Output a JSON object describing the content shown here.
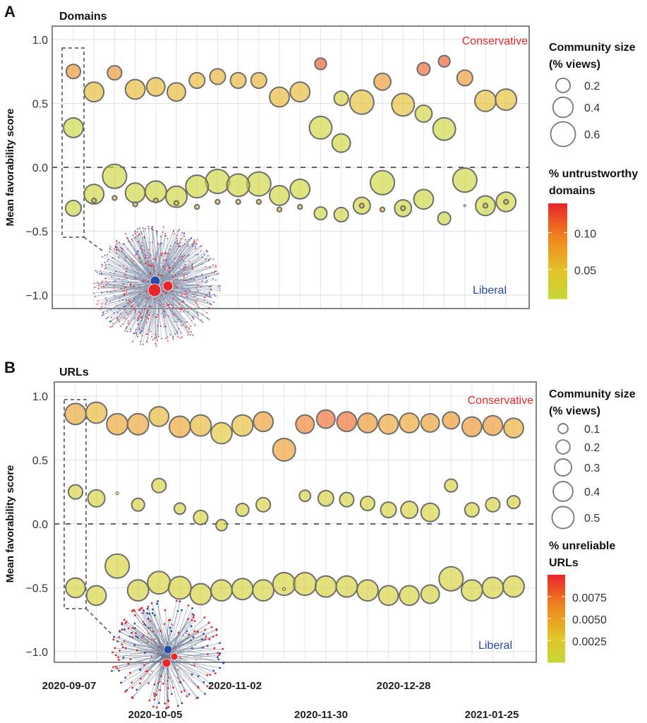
{
  "colors": {
    "conservative": "#e8262a",
    "liberal": "#2a4aa8",
    "bubble_stroke": "#6e6e6e"
  },
  "chart_data": [
    {
      "type": "scatter",
      "panel": "A",
      "title": "Domains",
      "ylabel": "Mean favorability score",
      "xlabel": "",
      "ylim": [
        -1.1,
        1.1
      ],
      "yticks": [
        "1.0",
        "0.5",
        "0.0",
        "−0.5",
        "−1.0"
      ],
      "ytick_values": [
        1.0,
        0.5,
        0.0,
        -0.5,
        -1.0
      ],
      "grid": true,
      "zero_line": "dashed",
      "annotations": {
        "top": "Conservative",
        "bottom": "Liberal"
      },
      "size_legend": {
        "title": [
          "Community size",
          "(% views)"
        ],
        "values": [
          0.2,
          0.4,
          0.6
        ],
        "labels": [
          "0.2",
          "0.4",
          "0.6"
        ]
      },
      "color_legend": {
        "title": [
          "% untrustworthy",
          "domains"
        ],
        "range": [
          0.01,
          0.14
        ],
        "ticks": [
          "0.10",
          "0.05"
        ],
        "tick_values": [
          0.1,
          0.05
        ]
      },
      "highlight_week": "2020-09-07",
      "point_fields": [
        "week_index",
        "score",
        "community_size_pct_views",
        "pct_untrustworthy"
      ],
      "points": [
        [
          0,
          0.75,
          0.2,
          0.09
        ],
        [
          0,
          0.31,
          0.38,
          0.02
        ],
        [
          0,
          -0.32,
          0.24,
          0.02
        ],
        [
          1,
          0.59,
          0.38,
          0.06
        ],
        [
          1,
          -0.21,
          0.38,
          0.02
        ],
        [
          1,
          -0.26,
          0.02,
          0.06
        ],
        [
          2,
          0.74,
          0.2,
          0.09
        ],
        [
          2,
          -0.07,
          0.57,
          0.02
        ],
        [
          2,
          -0.24,
          0.02,
          0.06
        ],
        [
          3,
          0.61,
          0.38,
          0.06
        ],
        [
          3,
          -0.2,
          0.38,
          0.02
        ],
        [
          3,
          -0.29,
          0.02,
          0.06
        ],
        [
          4,
          0.63,
          0.33,
          0.06
        ],
        [
          4,
          -0.19,
          0.44,
          0.02
        ],
        [
          4,
          -0.26,
          0.02,
          0.06
        ],
        [
          5,
          0.59,
          0.33,
          0.06
        ],
        [
          5,
          -0.23,
          0.44,
          0.02
        ],
        [
          5,
          -0.28,
          0.02,
          0.06
        ],
        [
          6,
          0.68,
          0.24,
          0.06
        ],
        [
          6,
          -0.15,
          0.5,
          0.02
        ],
        [
          6,
          -0.31,
          0.02,
          0.06
        ],
        [
          7,
          0.71,
          0.24,
          0.065
        ],
        [
          7,
          -0.11,
          0.57,
          0.02
        ],
        [
          7,
          -0.27,
          0.02,
          0.06
        ],
        [
          8,
          0.68,
          0.24,
          0.065
        ],
        [
          8,
          -0.14,
          0.5,
          0.02
        ],
        [
          8,
          -0.27,
          0.02,
          0.06
        ],
        [
          9,
          0.68,
          0.24,
          0.065
        ],
        [
          9,
          -0.13,
          0.57,
          0.02
        ],
        [
          9,
          -0.27,
          0.02,
          0.06
        ],
        [
          10,
          0.55,
          0.38,
          0.06
        ],
        [
          10,
          -0.22,
          0.38,
          0.02
        ],
        [
          10,
          -0.33,
          0.02,
          0.06
        ],
        [
          11,
          0.59,
          0.38,
          0.06
        ],
        [
          11,
          -0.17,
          0.38,
          0.02
        ],
        [
          11,
          -0.31,
          0.02,
          0.06
        ],
        [
          12,
          0.81,
          0.13,
          0.12
        ],
        [
          12,
          0.31,
          0.5,
          0.02
        ],
        [
          12,
          -0.36,
          0.16,
          0.02
        ],
        [
          13,
          0.54,
          0.2,
          0.03
        ],
        [
          13,
          0.19,
          0.33,
          0.02
        ],
        [
          13,
          -0.37,
          0.2,
          0.02
        ],
        [
          14,
          0.51,
          0.57,
          0.055
        ],
        [
          14,
          -0.3,
          0.28,
          0.02
        ],
        [
          14,
          -0.3,
          0.02,
          0.06
        ],
        [
          15,
          0.67,
          0.28,
          0.085
        ],
        [
          15,
          -0.12,
          0.57,
          0.02
        ],
        [
          15,
          -0.33,
          0.02,
          0.06
        ],
        [
          16,
          0.49,
          0.5,
          0.055
        ],
        [
          16,
          -0.32,
          0.28,
          0.02
        ],
        [
          16,
          -0.32,
          0.02,
          0.06
        ],
        [
          17,
          0.77,
          0.16,
          0.115
        ],
        [
          17,
          0.42,
          0.28,
          0.025
        ],
        [
          17,
          -0.25,
          0.38,
          0.02
        ],
        [
          18,
          0.83,
          0.13,
          0.12
        ],
        [
          18,
          0.3,
          0.5,
          0.02
        ],
        [
          18,
          -0.4,
          0.16,
          0.02
        ],
        [
          19,
          0.7,
          0.24,
          0.085
        ],
        [
          19,
          -0.1,
          0.57,
          0.02
        ],
        [
          19,
          -0.3,
          0.005,
          0.02
        ],
        [
          20,
          0.52,
          0.44,
          0.055
        ],
        [
          20,
          -0.3,
          0.38,
          0.02
        ],
        [
          20,
          -0.3,
          0.02,
          0.06
        ],
        [
          21,
          0.53,
          0.44,
          0.055
        ],
        [
          21,
          -0.27,
          0.38,
          0.02
        ],
        [
          21,
          -0.27,
          0.02,
          0.06
        ]
      ]
    },
    {
      "type": "scatter",
      "panel": "B",
      "title": "URLs",
      "ylabel": "Mean favorability score",
      "xlabel": "",
      "ylim": [
        -1.1,
        1.1
      ],
      "yticks": [
        "1.0",
        "0.5",
        "0.0",
        "−0.5",
        "−1.0"
      ],
      "ytick_values": [
        1.0,
        0.5,
        0.0,
        -0.5,
        -1.0
      ],
      "grid": true,
      "zero_line": "dashed",
      "annotations": {
        "top": "Conservative",
        "bottom": "Liberal"
      },
      "size_legend": {
        "title": [
          "Community size",
          "(% views)"
        ],
        "values": [
          0.1,
          0.2,
          0.3,
          0.4,
          0.5
        ],
        "labels": [
          "0.1",
          "0.2",
          "0.3",
          "0.4",
          "0.5"
        ]
      },
      "color_legend": {
        "title": [
          "% unreliable",
          "URLs"
        ],
        "range": [
          0,
          0.01
        ],
        "ticks": [
          "0.0075",
          "0.0050",
          "0.0025"
        ],
        "tick_values": [
          0.0075,
          0.005,
          0.0025
        ]
      },
      "highlight_week": "2020-09-07",
      "point_fields": [
        "week_index",
        "score",
        "community_size_pct_views",
        "pct_unreliable"
      ],
      "points": [
        [
          0,
          0.86,
          0.46,
          0.005
        ],
        [
          0,
          0.25,
          0.21,
          0.0015
        ],
        [
          0,
          -0.5,
          0.4,
          0.0015
        ],
        [
          1,
          0.87,
          0.46,
          0.004
        ],
        [
          1,
          0.2,
          0.3,
          0.0015
        ],
        [
          1,
          -0.56,
          0.4,
          0.0015
        ],
        [
          2,
          0.78,
          0.46,
          0.005
        ],
        [
          2,
          0.24,
          0.01,
          0.0015
        ],
        [
          2,
          -0.33,
          0.6,
          0.0015
        ],
        [
          3,
          0.78,
          0.46,
          0.005
        ],
        [
          3,
          0.15,
          0.17,
          0.0015
        ],
        [
          3,
          -0.52,
          0.46,
          0.0015
        ],
        [
          4,
          0.84,
          0.4,
          0.004
        ],
        [
          4,
          0.3,
          0.21,
          0.0015
        ],
        [
          4,
          -0.46,
          0.53,
          0.0015
        ],
        [
          5,
          0.76,
          0.46,
          0.005
        ],
        [
          5,
          0.12,
          0.13,
          0.0015
        ],
        [
          5,
          -0.5,
          0.53,
          0.0015
        ],
        [
          6,
          0.77,
          0.46,
          0.004
        ],
        [
          6,
          0.05,
          0.21,
          0.0015
        ],
        [
          6,
          -0.55,
          0.46,
          0.0015
        ],
        [
          7,
          0.71,
          0.46,
          0.003
        ],
        [
          7,
          -0.01,
          0.13,
          0.0015
        ],
        [
          7,
          -0.52,
          0.46,
          0.0015
        ],
        [
          8,
          0.77,
          0.46,
          0.0035
        ],
        [
          8,
          0.11,
          0.17,
          0.0015
        ],
        [
          8,
          -0.51,
          0.46,
          0.0015
        ],
        [
          9,
          0.8,
          0.4,
          0.0055
        ],
        [
          9,
          0.15,
          0.21,
          0.0015
        ],
        [
          9,
          -0.52,
          0.46,
          0.0015
        ],
        [
          10,
          0.58,
          0.53,
          0.0055
        ],
        [
          10,
          -0.51,
          0.01,
          0.0015
        ],
        [
          10,
          -0.47,
          0.53,
          0.0015
        ],
        [
          11,
          0.78,
          0.35,
          0.007
        ],
        [
          11,
          0.22,
          0.13,
          0.0015
        ],
        [
          11,
          -0.47,
          0.53,
          0.0015
        ],
        [
          12,
          0.82,
          0.35,
          0.0078
        ],
        [
          12,
          0.2,
          0.25,
          0.0015
        ],
        [
          12,
          -0.49,
          0.46,
          0.0015
        ],
        [
          13,
          0.8,
          0.4,
          0.0078
        ],
        [
          13,
          0.19,
          0.21,
          0.0015
        ],
        [
          13,
          -0.49,
          0.46,
          0.0015
        ],
        [
          14,
          0.79,
          0.4,
          0.006
        ],
        [
          14,
          0.16,
          0.21,
          0.0015
        ],
        [
          14,
          -0.52,
          0.46,
          0.0015
        ],
        [
          15,
          0.78,
          0.4,
          0.005
        ],
        [
          15,
          0.11,
          0.25,
          0.0015
        ],
        [
          15,
          -0.56,
          0.4,
          0.0015
        ],
        [
          16,
          0.79,
          0.4,
          0.005
        ],
        [
          16,
          0.11,
          0.3,
          0.0015
        ],
        [
          16,
          -0.56,
          0.4,
          0.0015
        ],
        [
          17,
          0.79,
          0.35,
          0.0055
        ],
        [
          17,
          0.09,
          0.35,
          0.0015
        ],
        [
          17,
          -0.55,
          0.35,
          0.0015
        ],
        [
          18,
          0.81,
          0.3,
          0.006
        ],
        [
          18,
          0.3,
          0.17,
          0.0015
        ],
        [
          18,
          -0.43,
          0.6,
          0.0015
        ],
        [
          19,
          0.76,
          0.4,
          0.006
        ],
        [
          19,
          0.11,
          0.21,
          0.0015
        ],
        [
          19,
          -0.52,
          0.46,
          0.0015
        ],
        [
          20,
          0.77,
          0.4,
          0.0058
        ],
        [
          20,
          0.15,
          0.21,
          0.0015
        ],
        [
          20,
          -0.5,
          0.46,
          0.0015
        ],
        [
          21,
          0.75,
          0.4,
          0.0045
        ],
        [
          21,
          0.17,
          0.17,
          0.0015
        ],
        [
          21,
          -0.49,
          0.46,
          0.0015
        ]
      ]
    }
  ],
  "weeks": [
    "2020-09-07",
    "2020-09-14",
    "2020-09-21",
    "2020-09-28",
    "2020-10-05",
    "2020-10-12",
    "2020-10-19",
    "2020-10-26",
    "2020-11-02",
    "2020-11-09",
    "2020-11-16",
    "2020-11-23",
    "2020-11-30",
    "2020-12-07",
    "2020-12-14",
    "2020-12-21",
    "2020-12-28",
    "2021-01-04",
    "2021-01-11",
    "2021-01-18",
    "2021-01-25",
    "2021-02-01"
  ],
  "x_tick_labels": {
    "row1": [
      "2020-09-07",
      "2020-11-02",
      "2020-12-28"
    ],
    "row2": [
      "2020-10-05",
      "2020-11-30",
      "2021-01-25"
    ]
  }
}
